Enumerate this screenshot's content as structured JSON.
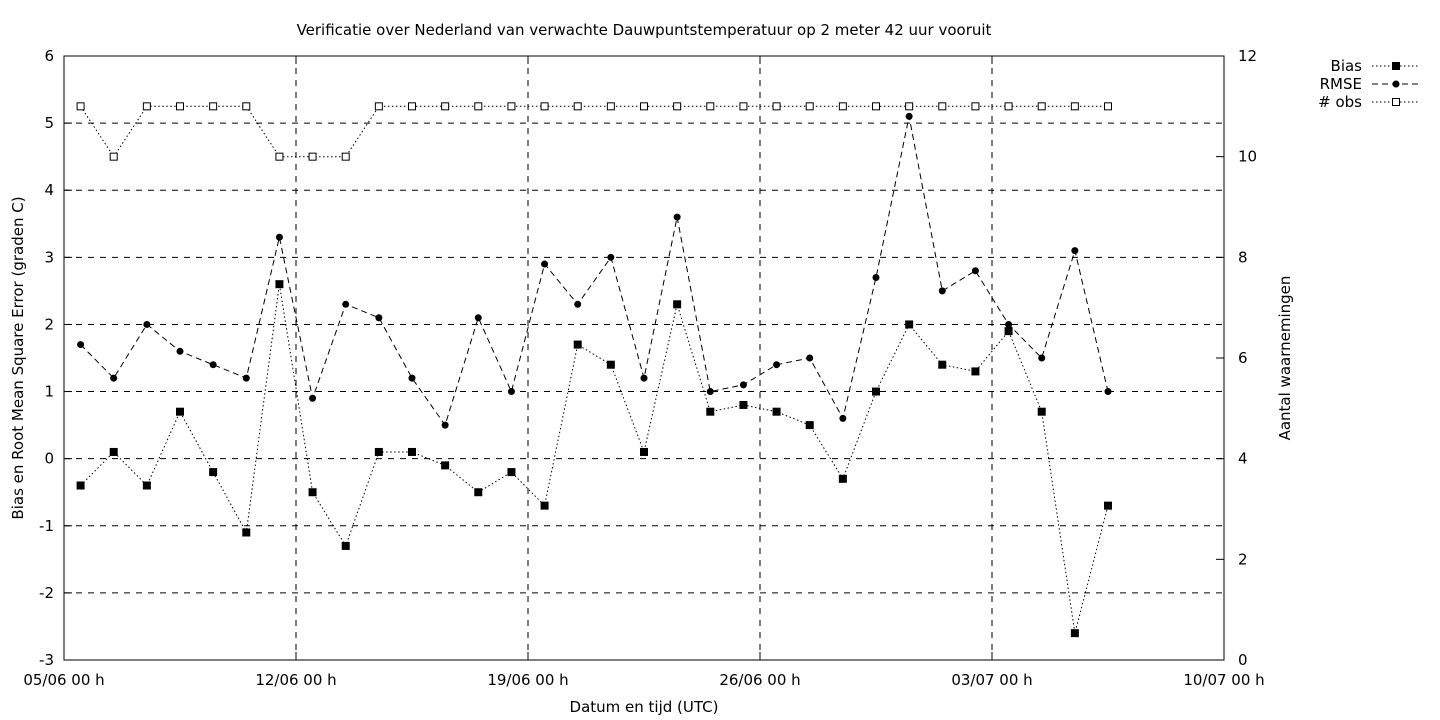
{
  "chart_data": {
    "type": "line",
    "title": "Verificatie over Nederland van verwachte Dauwpuntstemperatuur op 2 meter 42 uur vooruit",
    "xlabel": "Datum en tijd (UTC)",
    "ylabel": "Bias en Root Mean Square Error (graden C)",
    "y2label": "Aantal waarnemingen",
    "x_range": [
      "2023-06-05",
      "2023-07-10"
    ],
    "x_ticks": [
      "05/06 00 h",
      "12/06 00 h",
      "19/06 00 h",
      "26/06 00 h",
      "03/07 00 h",
      "10/07 00 h"
    ],
    "ylim": [
      -3,
      6
    ],
    "y_ticks": [
      "-3",
      "-2",
      "-1",
      "0",
      "1",
      "2",
      "3",
      "4",
      "5",
      "6"
    ],
    "y2lim": [
      0,
      12
    ],
    "y2_ticks": [
      "0",
      "2",
      "4",
      "6",
      "8",
      "10",
      "12"
    ],
    "grid": true,
    "legend_position": "outside-top-right",
    "x": [
      "2023-06-05 12:00",
      "2023-06-06 12:00",
      "2023-06-07 12:00",
      "2023-06-08 12:00",
      "2023-06-09 12:00",
      "2023-06-10 12:00",
      "2023-06-11 12:00",
      "2023-06-12 12:00",
      "2023-06-13 12:00",
      "2023-06-14 12:00",
      "2023-06-15 12:00",
      "2023-06-16 12:00",
      "2023-06-17 12:00",
      "2023-06-18 12:00",
      "2023-06-19 12:00",
      "2023-06-20 12:00",
      "2023-06-21 12:00",
      "2023-06-22 12:00",
      "2023-06-23 12:00",
      "2023-06-24 12:00",
      "2023-06-25 12:00",
      "2023-06-26 12:00",
      "2023-06-27 12:00",
      "2023-06-28 12:00",
      "2023-06-29 12:00",
      "2023-06-30 12:00",
      "2023-07-01 12:00",
      "2023-07-02 12:00",
      "2023-07-03 12:00",
      "2023-07-04 12:00",
      "2023-07-05 12:00",
      "2023-07-06 12:00"
    ],
    "series": [
      {
        "name": "Bias",
        "axis": "y1",
        "style": "dotted",
        "marker": "filled-square",
        "values": [
          -0.4,
          0.1,
          -0.4,
          0.7,
          -0.2,
          -1.1,
          2.6,
          -0.5,
          -1.3,
          0.1,
          0.1,
          -0.1,
          -0.5,
          -0.2,
          -0.7,
          1.7,
          1.4,
          0.1,
          2.3,
          0.7,
          0.8,
          0.7,
          0.5,
          -0.3,
          1.0,
          2.0,
          1.4,
          1.3,
          1.9,
          0.7,
          -2.6,
          -0.7
        ]
      },
      {
        "name": "RMSE",
        "axis": "y1",
        "style": "dashed",
        "marker": "filled-circle",
        "values": [
          1.7,
          1.2,
          2.0,
          1.6,
          1.4,
          1.2,
          3.3,
          0.9,
          2.3,
          2.1,
          1.2,
          0.5,
          2.1,
          1.0,
          2.9,
          2.3,
          3.0,
          1.2,
          3.6,
          1.0,
          1.1,
          1.4,
          1.5,
          0.6,
          2.7,
          5.1,
          2.5,
          2.8,
          2.0,
          1.5,
          3.1,
          1.0
        ]
      },
      {
        "name": "# obs",
        "axis": "y2",
        "style": "dotted",
        "marker": "open-square",
        "values": [
          11,
          10,
          11,
          11,
          11,
          11,
          10,
          10,
          10,
          11,
          11,
          11,
          11,
          11,
          11,
          11,
          11,
          11,
          11,
          11,
          11,
          11,
          11,
          11,
          11,
          11,
          11,
          11,
          11,
          11,
          11,
          11
        ]
      }
    ]
  }
}
